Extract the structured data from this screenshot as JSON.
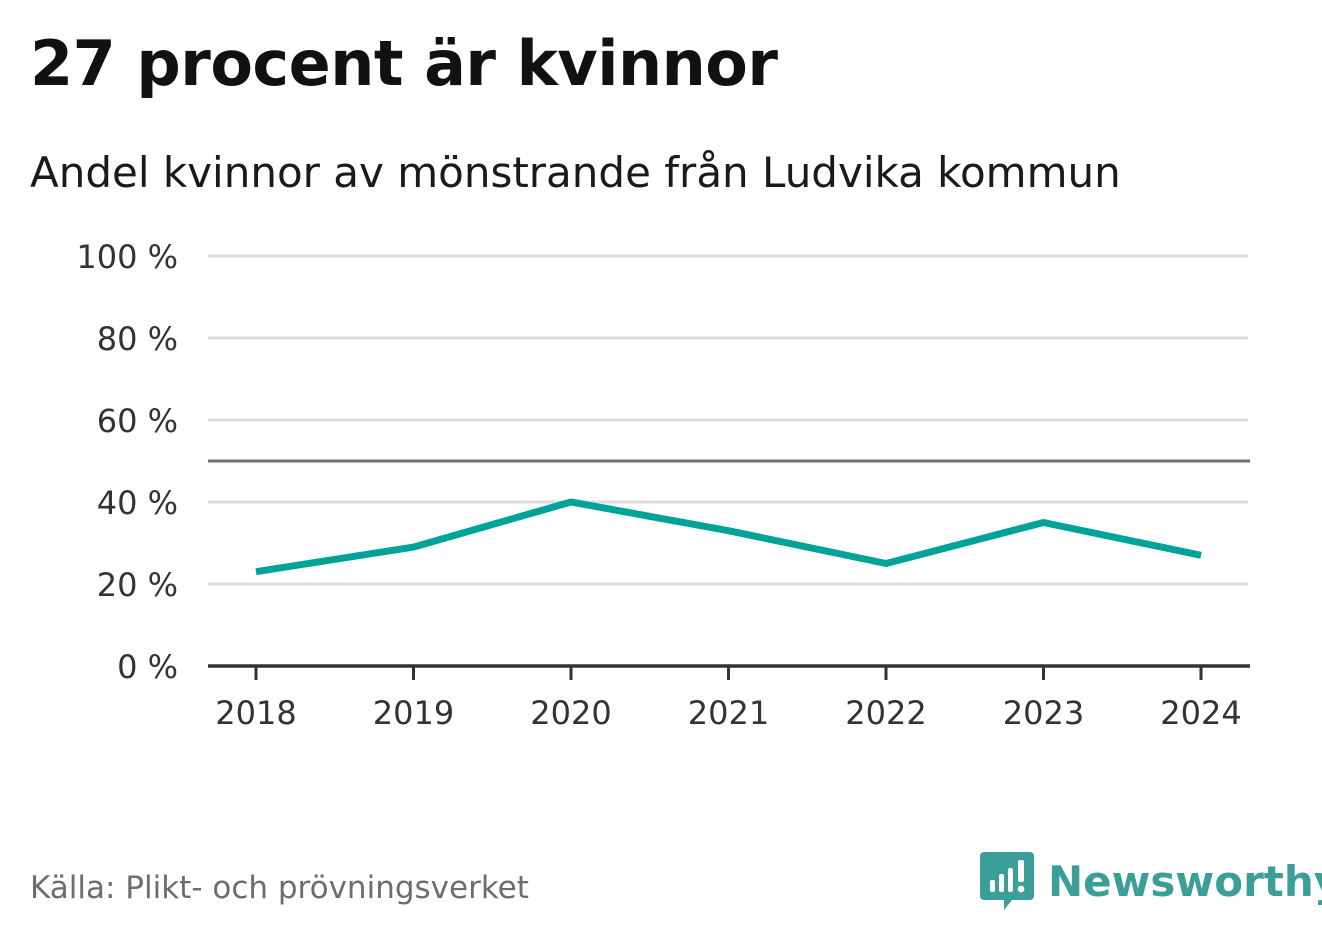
{
  "header": {
    "title": "27 procent är kvinnor",
    "subtitle": "Andel kvinnor av mönstrande från Ludvika kommun"
  },
  "footer": {
    "source": "Källa: Plikt- och prövningsverket",
    "brand": "Newsworthy"
  },
  "colors": {
    "line": "#00a398",
    "grid": "#dddddd",
    "reference": "#6f6f73",
    "axis": "#333333",
    "brand": "#3a9e99"
  },
  "chart_data": {
    "type": "line",
    "title": "27 procent är kvinnor",
    "subtitle": "Andel kvinnor av mönstrande från Ludvika kommun",
    "xlabel": "",
    "ylabel": "",
    "x": [
      "2018",
      "2019",
      "2020",
      "2021",
      "2022",
      "2023",
      "2024"
    ],
    "series": [
      {
        "name": "Andel kvinnor",
        "values": [
          23,
          29,
          40,
          33,
          25,
          35,
          27
        ]
      }
    ],
    "ylim": [
      0,
      100
    ],
    "yticks": [
      0,
      20,
      40,
      60,
      80,
      100
    ],
    "ytick_labels": [
      "0 %",
      "20 %",
      "40 %",
      "60 %",
      "80 %",
      "100 %"
    ],
    "reference_line": 50,
    "grid": true
  }
}
